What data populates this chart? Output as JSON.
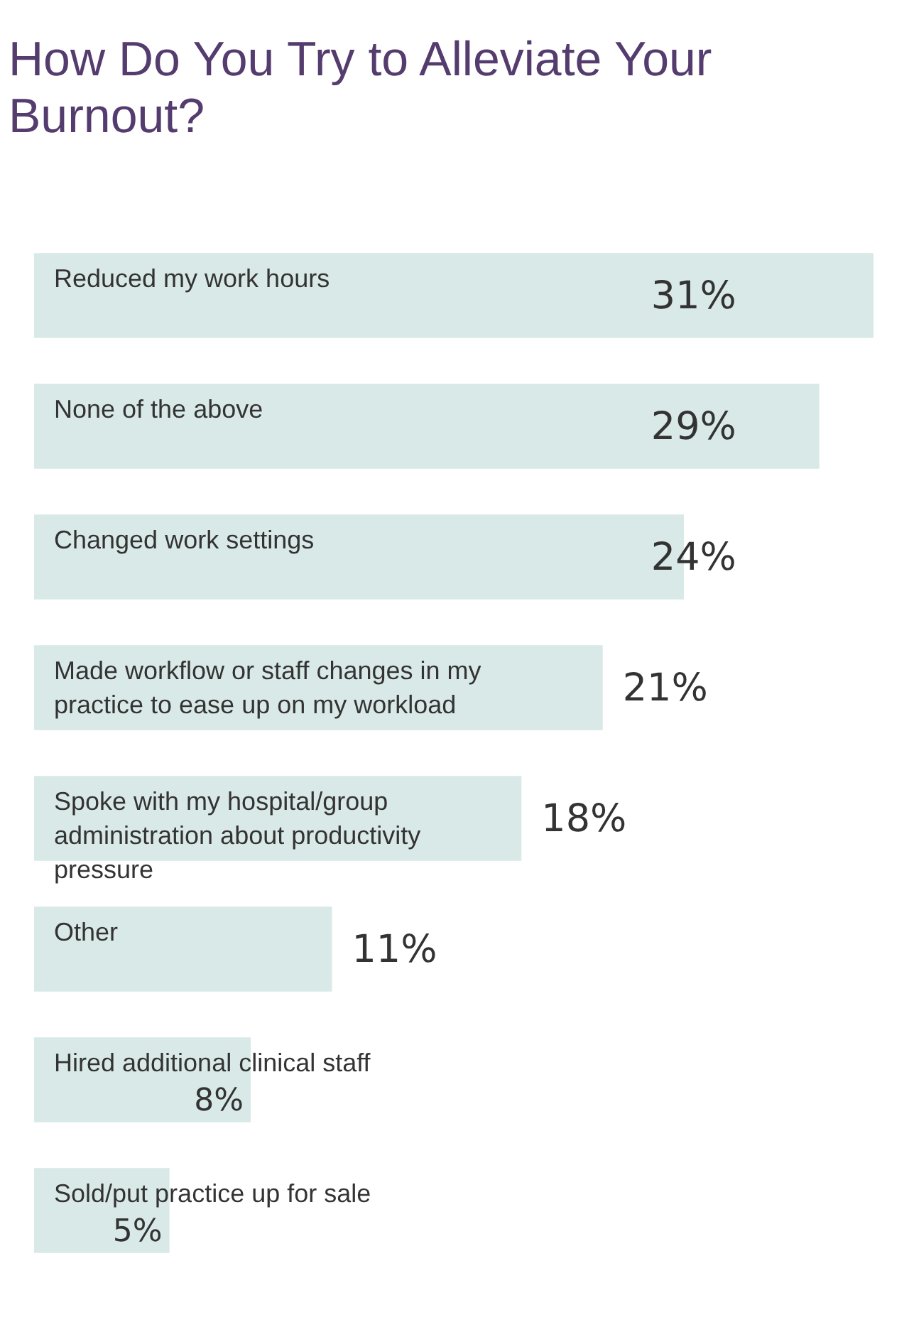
{
  "chart_data": {
    "type": "bar",
    "orientation": "horizontal",
    "title": "How Do You Try to Alleviate Your Burnout?",
    "categories": [
      "Reduced my work hours",
      "None of the above",
      "Changed work settings",
      "Made workflow or staff changes in my practice to ease up on my workload",
      "Spoke with my hospital/group administration about productivity pressure",
      "Other",
      "Hired additional clinical staff",
      "Sold/put practice up for sale"
    ],
    "values": [
      31,
      29,
      24,
      21,
      18,
      11,
      8,
      5
    ],
    "value_labels": [
      "31%",
      "29%",
      "24%",
      "21%",
      "18%",
      "11%",
      "8%",
      "5%"
    ],
    "color": "#d9e9e7",
    "legend": false
  }
}
